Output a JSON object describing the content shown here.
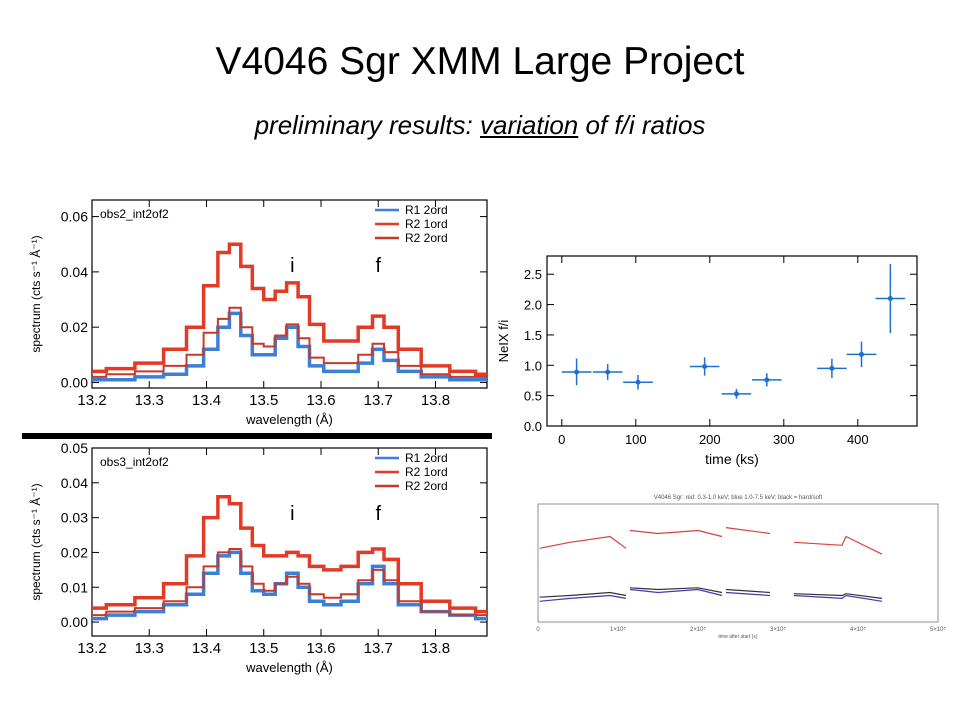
{
  "slide": {
    "title": "V4046 Sgr XMM Large Project",
    "subtitle_pre": "preliminary results: ",
    "subtitle_underlined": "variation",
    "subtitle_post": " of f/i ratios"
  },
  "colors": {
    "blue": "#3b7fd6",
    "red": "#e23a25",
    "darkred": "#c8392a",
    "plotblue": "#1f6fd0"
  },
  "chart_data": [
    {
      "id": "spectrum-obs2",
      "type": "line",
      "title": "obs2_int2of2",
      "xlabel": "wavelength (Å)",
      "ylabel": "spectrum (cts s⁻¹ Å⁻¹)",
      "xlim": [
        13.2,
        13.89
      ],
      "ylim": [
        -0.002,
        0.066
      ],
      "xticks": [
        "13.2",
        "13.3",
        "13.4",
        "13.5",
        "13.6",
        "13.7",
        "13.8"
      ],
      "yticks": [
        "0.00",
        "0.02",
        "0.04",
        "0.06"
      ],
      "legend": [
        "R1 2ord",
        "R2 1ord",
        "R2 2ord"
      ],
      "line_labels": [
        "i",
        "f"
      ],
      "line_label_positions": [
        13.55,
        13.7
      ],
      "series": [
        {
          "name": "R1 2ord",
          "color": "#3b7fd6",
          "x": [
            13.2,
            13.25,
            13.3,
            13.35,
            13.38,
            13.41,
            13.43,
            13.45,
            13.47,
            13.49,
            13.51,
            13.53,
            13.55,
            13.57,
            13.59,
            13.62,
            13.65,
            13.68,
            13.7,
            13.72,
            13.75,
            13.8,
            13.85,
            13.89
          ],
          "y": [
            0.001,
            0.001,
            0.002,
            0.003,
            0.006,
            0.012,
            0.02,
            0.025,
            0.017,
            0.01,
            0.01,
            0.016,
            0.02,
            0.013,
            0.006,
            0.004,
            0.004,
            0.007,
            0.012,
            0.008,
            0.004,
            0.002,
            0.001,
            0.001
          ]
        },
        {
          "name": "R2 1ord",
          "color": "#e23a25",
          "x": [
            13.2,
            13.25,
            13.3,
            13.35,
            13.38,
            13.41,
            13.43,
            13.45,
            13.47,
            13.49,
            13.51,
            13.53,
            13.55,
            13.57,
            13.59,
            13.62,
            13.65,
            13.68,
            13.7,
            13.72,
            13.75,
            13.8,
            13.85,
            13.89
          ],
          "y": [
            0.004,
            0.005,
            0.007,
            0.012,
            0.02,
            0.035,
            0.047,
            0.05,
            0.042,
            0.034,
            0.03,
            0.033,
            0.036,
            0.031,
            0.021,
            0.015,
            0.015,
            0.02,
            0.024,
            0.02,
            0.012,
            0.006,
            0.004,
            0.003
          ]
        },
        {
          "name": "R2 2ord",
          "color": "#c8392a",
          "x": [
            13.2,
            13.25,
            13.3,
            13.35,
            13.38,
            13.41,
            13.43,
            13.45,
            13.47,
            13.49,
            13.51,
            13.53,
            13.55,
            13.57,
            13.59,
            13.62,
            13.65,
            13.68,
            13.7,
            13.72,
            13.75,
            13.8,
            13.85,
            13.89
          ],
          "y": [
            0.002,
            0.003,
            0.004,
            0.006,
            0.01,
            0.018,
            0.023,
            0.027,
            0.02,
            0.014,
            0.013,
            0.017,
            0.021,
            0.016,
            0.009,
            0.007,
            0.007,
            0.01,
            0.014,
            0.011,
            0.006,
            0.003,
            0.002,
            0.002
          ]
        }
      ]
    },
    {
      "id": "spectrum-obs3",
      "type": "line",
      "title": "obs3_int2of2",
      "xlabel": "wavelength (Å)",
      "ylabel": "spectrum (cts s⁻¹ Å⁻¹)",
      "xlim": [
        13.2,
        13.89
      ],
      "ylim": [
        -0.004,
        0.05
      ],
      "xticks": [
        "13.2",
        "13.3",
        "13.4",
        "13.5",
        "13.6",
        "13.7",
        "13.8"
      ],
      "yticks": [
        "0.00",
        "0.01",
        "0.02",
        "0.03",
        "0.04",
        "0.05"
      ],
      "legend": [
        "R1 2ord",
        "R2 1ord",
        "R2 2ord"
      ],
      "line_labels": [
        "i",
        "f"
      ],
      "line_label_positions": [
        13.55,
        13.7
      ],
      "series": [
        {
          "name": "R1 2ord",
          "color": "#3b7fd6",
          "x": [
            13.2,
            13.25,
            13.3,
            13.35,
            13.38,
            13.41,
            13.43,
            13.45,
            13.47,
            13.49,
            13.51,
            13.53,
            13.55,
            13.57,
            13.59,
            13.62,
            13.65,
            13.68,
            13.7,
            13.72,
            13.75,
            13.8,
            13.85,
            13.89
          ],
          "y": [
            0.001,
            0.002,
            0.003,
            0.005,
            0.008,
            0.014,
            0.019,
            0.02,
            0.014,
            0.009,
            0.008,
            0.011,
            0.014,
            0.01,
            0.006,
            0.005,
            0.006,
            0.011,
            0.016,
            0.011,
            0.005,
            0.003,
            0.002,
            0.001
          ]
        },
        {
          "name": "R2 1ord",
          "color": "#e23a25",
          "x": [
            13.2,
            13.25,
            13.3,
            13.35,
            13.38,
            13.41,
            13.43,
            13.45,
            13.47,
            13.49,
            13.51,
            13.53,
            13.55,
            13.57,
            13.59,
            13.62,
            13.65,
            13.68,
            13.7,
            13.72,
            13.75,
            13.8,
            13.85,
            13.89
          ],
          "y": [
            0.004,
            0.005,
            0.007,
            0.011,
            0.019,
            0.03,
            0.036,
            0.034,
            0.027,
            0.022,
            0.019,
            0.019,
            0.02,
            0.019,
            0.016,
            0.015,
            0.016,
            0.02,
            0.021,
            0.018,
            0.011,
            0.006,
            0.004,
            0.003
          ]
        },
        {
          "name": "R2 2ord",
          "color": "#c8392a",
          "x": [
            13.2,
            13.25,
            13.3,
            13.35,
            13.38,
            13.41,
            13.43,
            13.45,
            13.47,
            13.49,
            13.51,
            13.53,
            13.55,
            13.57,
            13.59,
            13.62,
            13.65,
            13.68,
            13.7,
            13.72,
            13.75,
            13.8,
            13.85,
            13.89
          ],
          "y": [
            0.002,
            0.003,
            0.004,
            0.006,
            0.01,
            0.016,
            0.02,
            0.021,
            0.016,
            0.011,
            0.009,
            0.011,
            0.013,
            0.011,
            0.008,
            0.007,
            0.008,
            0.012,
            0.015,
            0.012,
            0.006,
            0.003,
            0.002,
            0.002
          ]
        }
      ]
    },
    {
      "id": "fi-ratio",
      "type": "scatter",
      "xlabel": "time (ks)",
      "ylabel": "NeIX f/i",
      "xlim": [
        -20,
        480
      ],
      "ylim": [
        0.0,
        2.8
      ],
      "xticks": [
        "0",
        "100",
        "200",
        "300",
        "400"
      ],
      "yticks": [
        "0.0",
        "0.5",
        "1.0",
        "1.5",
        "2.0",
        "2.5"
      ],
      "color": "#1f6fd0",
      "points": [
        {
          "x": 20,
          "y": 0.89,
          "xerr": 20,
          "yerr": 0.22
        },
        {
          "x": 62,
          "y": 0.89,
          "xerr": 20,
          "yerr": 0.13
        },
        {
          "x": 103,
          "y": 0.72,
          "xerr": 20,
          "yerr": 0.12
        },
        {
          "x": 193,
          "y": 0.98,
          "xerr": 20,
          "yerr": 0.15
        },
        {
          "x": 236,
          "y": 0.53,
          "xerr": 20,
          "yerr": 0.08
        },
        {
          "x": 277,
          "y": 0.76,
          "xerr": 20,
          "yerr": 0.11
        },
        {
          "x": 365,
          "y": 0.95,
          "xerr": 20,
          "yerr": 0.16
        },
        {
          "x": 405,
          "y": 1.18,
          "xerr": 20,
          "yerr": 0.21
        },
        {
          "x": 444,
          "y": 2.1,
          "xerr": 20,
          "yerr": 0.57
        }
      ]
    },
    {
      "id": "lightcurve",
      "type": "line",
      "title": "V4046 Sgr: red: 0.3-1.0 keV; blue 1.0-7.5 keV; black = hard/soft",
      "xlabel": "time after start (s)",
      "xticks": [
        "0",
        "1×10⁵",
        "2×10⁵",
        "3×10⁵",
        "4×10⁵",
        "5×10⁵"
      ],
      "series": [
        {
          "name": "red",
          "color": "#d94040",
          "x": [
            0.02,
            0.4,
            0.9,
            1.1,
            1.15,
            1.5,
            2.0,
            2.3,
            2.35,
            2.9,
            3.2,
            3.8,
            3.85,
            4.3
          ],
          "y": [
            1.25,
            1.35,
            1.45,
            1.25,
            1.55,
            1.5,
            1.55,
            1.45,
            1.6,
            1.5,
            1.35,
            1.3,
            1.45,
            1.15
          ]
        },
        {
          "name": "blue",
          "color": "#3b3bb5",
          "x": [
            0.02,
            0.4,
            0.9,
            1.1,
            1.15,
            1.5,
            2.0,
            2.3,
            2.35,
            2.9,
            3.2,
            3.8,
            3.85,
            4.3
          ],
          "y": [
            0.35,
            0.4,
            0.45,
            0.4,
            0.55,
            0.5,
            0.55,
            0.45,
            0.5,
            0.45,
            0.45,
            0.4,
            0.45,
            0.35
          ]
        },
        {
          "name": "black",
          "color": "#333333",
          "x": [
            0.02,
            0.4,
            0.9,
            1.1,
            1.15,
            1.5,
            2.0,
            2.3,
            2.35,
            2.9,
            3.2,
            3.8,
            3.85,
            4.3
          ],
          "y": [
            0.42,
            0.45,
            0.5,
            0.45,
            0.58,
            0.55,
            0.58,
            0.5,
            0.55,
            0.5,
            0.48,
            0.45,
            0.48,
            0.4
          ]
        }
      ]
    }
  ]
}
